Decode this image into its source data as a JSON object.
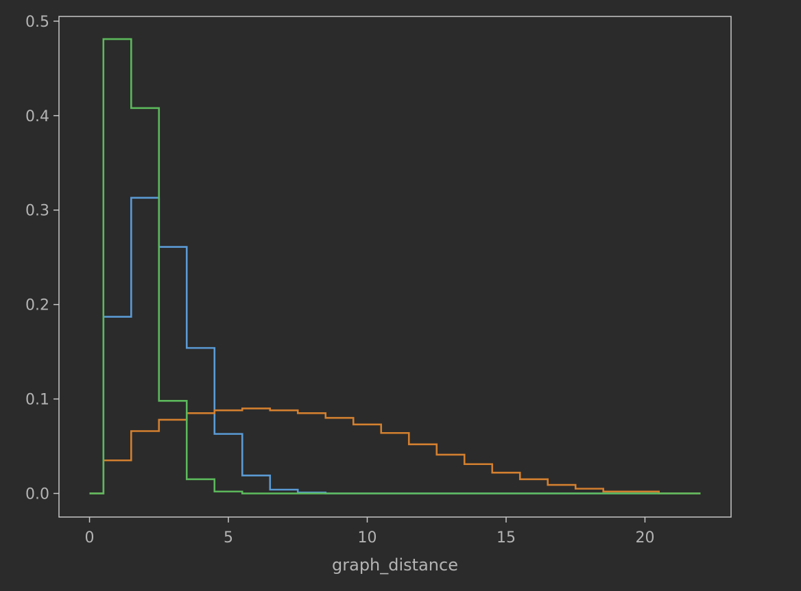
{
  "chart_data": {
    "type": "line",
    "subtype": "step-histogram",
    "title": "",
    "xlabel": "graph_distance",
    "ylabel": "",
    "xlim": [
      -1.1,
      23.1
    ],
    "ylim": [
      -0.025,
      0.505
    ],
    "xticks": [
      0,
      5,
      10,
      15,
      20
    ],
    "yticks": [
      0.0,
      0.1,
      0.2,
      0.3,
      0.4,
      0.5
    ],
    "xtick_labels": [
      "0",
      "5",
      "10",
      "15",
      "20"
    ],
    "ytick_labels": [
      "0.0",
      "0.1",
      "0.2",
      "0.3",
      "0.4",
      "0.5"
    ],
    "grid": false,
    "legend": "none",
    "background_color": "#2b2b2b",
    "axes_color": "#c8c8c8",
    "text_color": "#b4b4b4",
    "bin_edges": [
      -0.5,
      0.5,
      1.5,
      2.5,
      3.5,
      4.5,
      5.5,
      6.5,
      7.5,
      8.5,
      9.5,
      10.5,
      11.5,
      12.5,
      13.5,
      14.5,
      15.5,
      16.5,
      17.5,
      18.5,
      19.5,
      20.5,
      21.5,
      22.5
    ],
    "draw_range": [
      0,
      22
    ],
    "series": [
      {
        "color": "#5b9bd5",
        "values": [
          0.0,
          0.187,
          0.313,
          0.261,
          0.154,
          0.063,
          0.019,
          0.004,
          0.001,
          0.0,
          0.0,
          0.0,
          0.0,
          0.0,
          0.0,
          0.0,
          0.0,
          0.0,
          0.0,
          0.0,
          0.0,
          0.0,
          0.0
        ]
      },
      {
        "color": "#d4802f",
        "values": [
          0.0,
          0.035,
          0.066,
          0.078,
          0.085,
          0.088,
          0.09,
          0.088,
          0.085,
          0.08,
          0.073,
          0.064,
          0.052,
          0.041,
          0.031,
          0.022,
          0.015,
          0.009,
          0.005,
          0.002,
          0.002,
          0.0,
          0.0
        ]
      },
      {
        "color": "#5cb85c",
        "values": [
          0.0,
          0.481,
          0.408,
          0.098,
          0.015,
          0.002,
          0.0,
          0.0,
          0.0,
          0.0,
          0.0,
          0.0,
          0.0,
          0.0,
          0.0,
          0.0,
          0.0,
          0.0,
          0.0,
          0.0,
          0.0,
          0.0,
          0.0
        ]
      }
    ]
  }
}
